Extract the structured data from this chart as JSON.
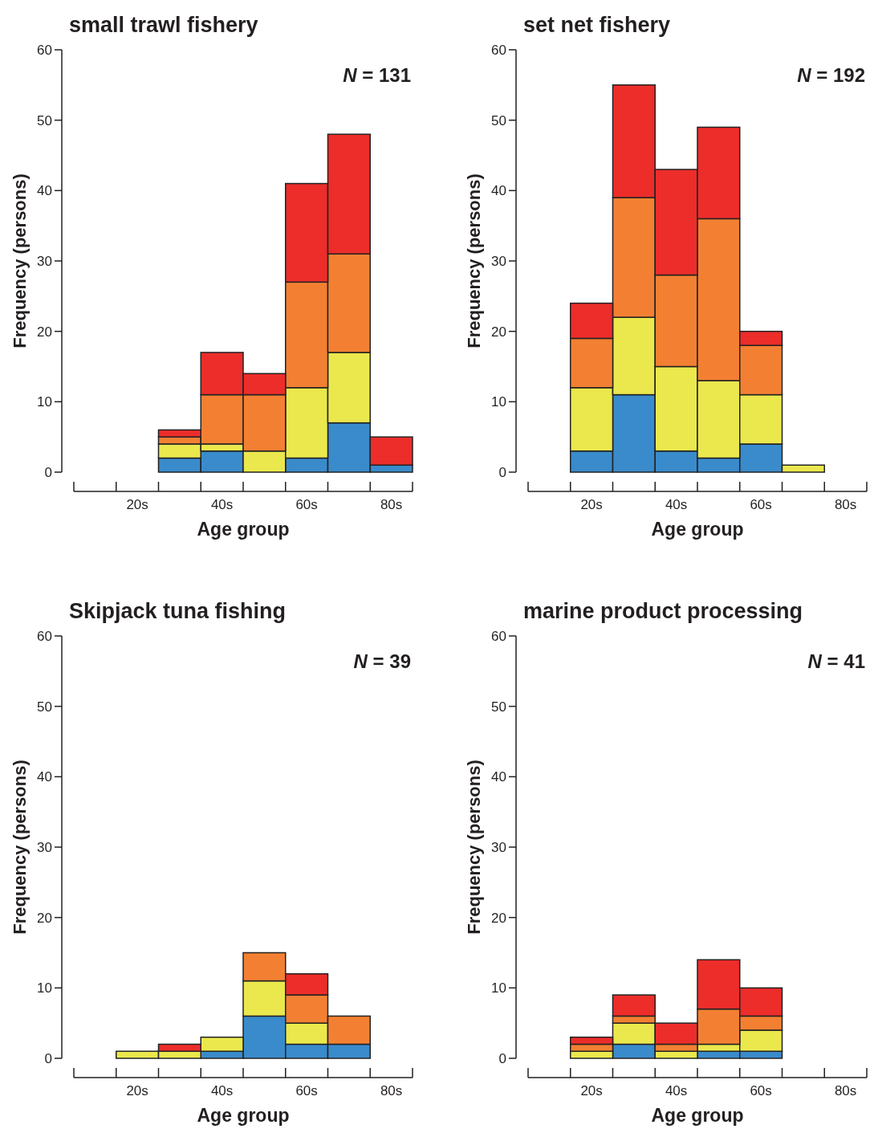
{
  "chart_data": [
    {
      "type": "bar",
      "stacked": true,
      "title": "small trawl fishery",
      "xlabel": "Age group",
      "ylabel": "Frequency (persons)",
      "annotations": [
        "N = 131"
      ],
      "categories": [
        null,
        "20s",
        null,
        "40s",
        null,
        "60s",
        null,
        "80s"
      ],
      "ylim": [
        0,
        60
      ],
      "yticks": [
        0,
        10,
        20,
        30,
        40,
        50,
        60
      ],
      "series": [
        {
          "color": "#3a8bcb",
          "values": [
            null,
            null,
            2,
            3,
            null,
            2,
            7,
            1
          ]
        },
        {
          "color": "#ebe84d",
          "values": [
            null,
            null,
            2,
            1,
            3,
            10,
            10,
            null
          ]
        },
        {
          "color": "#f38032",
          "values": [
            null,
            null,
            1,
            7,
            8,
            15,
            14,
            null
          ]
        },
        {
          "color": "#ec2d2a",
          "values": [
            null,
            null,
            1,
            6,
            3,
            14,
            17,
            4
          ]
        }
      ]
    },
    {
      "type": "bar",
      "stacked": true,
      "title": "set net fishery",
      "xlabel": "Age group",
      "ylabel": "Frequency (persons)",
      "annotations": [
        "N = 192"
      ],
      "categories": [
        null,
        "20s",
        null,
        "40s",
        null,
        "60s",
        null,
        "80s"
      ],
      "ylim": [
        0,
        60
      ],
      "yticks": [
        0,
        10,
        20,
        30,
        40,
        50,
        60
      ],
      "series": [
        {
          "color": "#3a8bcb",
          "values": [
            null,
            3,
            11,
            3,
            2,
            4,
            null,
            null
          ]
        },
        {
          "color": "#ebe84d",
          "values": [
            null,
            9,
            11,
            12,
            11,
            7,
            1,
            null
          ]
        },
        {
          "color": "#f38032",
          "values": [
            null,
            7,
            17,
            13,
            23,
            7,
            null,
            null
          ]
        },
        {
          "color": "#ec2d2a",
          "values": [
            null,
            5,
            16,
            15,
            13,
            2,
            null,
            null
          ]
        }
      ]
    },
    {
      "type": "bar",
      "stacked": true,
      "title": "Skipjack tuna fishing",
      "xlabel": "Age group",
      "ylabel": "Frequency (persons)",
      "annotations": [
        "N = 39"
      ],
      "categories": [
        null,
        "20s",
        null,
        "40s",
        null,
        "60s",
        null,
        "80s"
      ],
      "ylim": [
        0,
        60
      ],
      "yticks": [
        0,
        10,
        20,
        30,
        40,
        50,
        60
      ],
      "series": [
        {
          "color": "#3a8bcb",
          "values": [
            null,
            null,
            null,
            1,
            6,
            2,
            2,
            null
          ]
        },
        {
          "color": "#ebe84d",
          "values": [
            null,
            1,
            1,
            2,
            5,
            3,
            null,
            null
          ]
        },
        {
          "color": "#f38032",
          "values": [
            null,
            null,
            null,
            null,
            4,
            4,
            4,
            null
          ]
        },
        {
          "color": "#ec2d2a",
          "values": [
            null,
            null,
            1,
            null,
            null,
            3,
            null,
            null
          ]
        }
      ]
    },
    {
      "type": "bar",
      "stacked": true,
      "title": "marine product processing",
      "xlabel": "Age group",
      "ylabel": "Frequency (persons)",
      "annotations": [
        "N = 41"
      ],
      "categories": [
        null,
        "20s",
        null,
        "40s",
        null,
        "60s",
        null,
        "80s"
      ],
      "ylim": [
        0,
        60
      ],
      "yticks": [
        0,
        10,
        20,
        30,
        40,
        50,
        60
      ],
      "series": [
        {
          "color": "#3a8bcb",
          "values": [
            null,
            null,
            2,
            null,
            1,
            1,
            null,
            null
          ]
        },
        {
          "color": "#ebe84d",
          "values": [
            null,
            1,
            3,
            1,
            1,
            3,
            null,
            null
          ]
        },
        {
          "color": "#f38032",
          "values": [
            null,
            1,
            1,
            1,
            5,
            2,
            null,
            null
          ]
        },
        {
          "color": "#ec2d2a",
          "values": [
            null,
            1,
            3,
            3,
            7,
            4,
            null,
            null
          ]
        }
      ]
    }
  ]
}
